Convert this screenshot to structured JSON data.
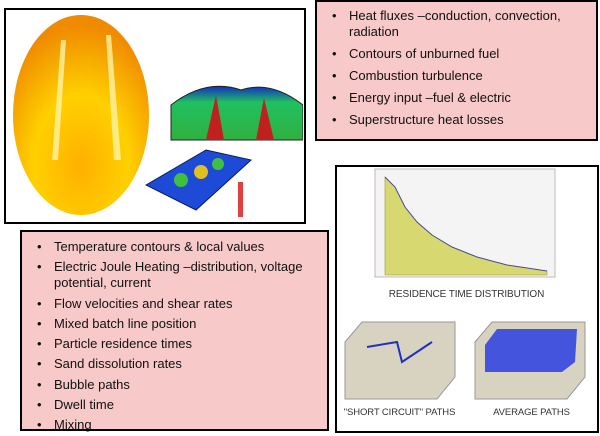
{
  "top_bullets": [
    "Heat fluxes –conduction, convection, radiation",
    "Contours of unburned fuel",
    "Combustion turbulence",
    "Energy input –fuel & electric",
    "Superstructure heat losses"
  ],
  "bottom_bullets": [
    "Temperature contours & local values",
    "Electric Joule Heating –distribution, voltage potential, current",
    "Flow velocities and shear rates",
    "Mixed batch line position",
    "Particle residence times",
    "Sand dissolution rates",
    "Bubble paths",
    "Dwell time",
    "Mixing"
  ],
  "figure": {
    "captions": [
      "RESIDENCE TIME DISTRIBUTION",
      "\"SHORT CIRCUIT\" PATHS",
      "AVERAGE PATHS"
    ]
  }
}
